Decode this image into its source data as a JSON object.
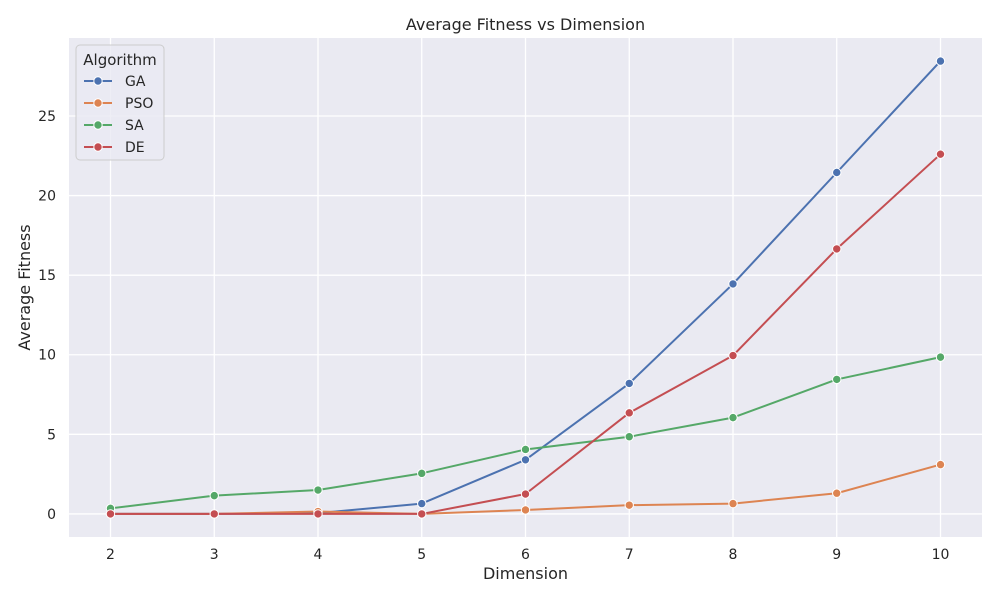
{
  "chart_data": {
    "type": "line",
    "title": "Average Fitness vs Dimension",
    "xlabel": "Dimension",
    "ylabel": "Average Fitness",
    "x": [
      2,
      3,
      4,
      5,
      6,
      7,
      8,
      9,
      10
    ],
    "xlim": [
      1.6,
      10.4
    ],
    "ylim": [
      -1.45,
      29.9
    ],
    "xticks": [
      2,
      3,
      4,
      5,
      6,
      7,
      8,
      9,
      10
    ],
    "yticks": [
      0,
      5,
      10,
      15,
      20,
      25
    ],
    "grid": true,
    "legend": {
      "title": "Algorithm",
      "placement": "top-left"
    },
    "series": [
      {
        "name": "GA",
        "color": "#4c72b0",
        "values": [
          0.0,
          0.0,
          0.05,
          0.65,
          3.4,
          8.2,
          14.45,
          21.45,
          28.45
        ]
      },
      {
        "name": "PSO",
        "color": "#dd8452",
        "values": [
          0.0,
          0.0,
          0.15,
          0.0,
          0.25,
          0.55,
          0.65,
          1.3,
          3.1
        ]
      },
      {
        "name": "SA",
        "color": "#55a868",
        "values": [
          0.35,
          1.15,
          1.5,
          2.55,
          4.05,
          4.85,
          6.05,
          8.45,
          9.85
        ]
      },
      {
        "name": "DE",
        "color": "#c44e52",
        "values": [
          0.0,
          0.0,
          0.0,
          0.0,
          1.25,
          6.35,
          9.95,
          16.65,
          22.6
        ]
      }
    ]
  }
}
